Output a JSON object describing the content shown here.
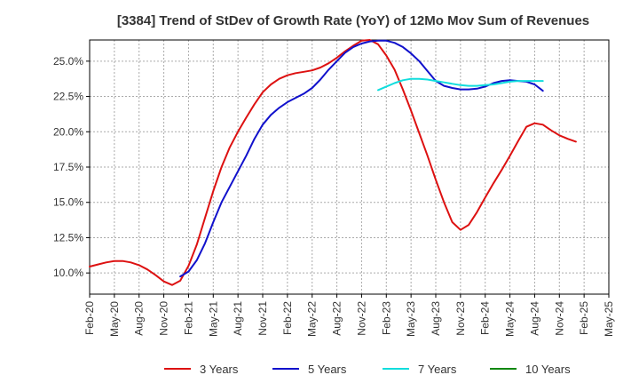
{
  "chart_data": {
    "type": "line",
    "title": "[3384]  Trend of StDev of Growth Rate (YoY) of 12Mo Mov Sum of Revenues",
    "xlabel": "",
    "ylabel": "",
    "ylim": [
      8.5,
      26.5
    ],
    "xlim": [
      0,
      63
    ],
    "grid": true,
    "legend_position": "bottom",
    "y_ticks": [
      {
        "value": 10.0,
        "label": "10.0%"
      },
      {
        "value": 12.5,
        "label": "12.5%"
      },
      {
        "value": 15.0,
        "label": "15.0%"
      },
      {
        "value": 17.5,
        "label": "17.5%"
      },
      {
        "value": 20.0,
        "label": "20.0%"
      },
      {
        "value": 22.5,
        "label": "22.5%"
      },
      {
        "value": 25.0,
        "label": "25.0%"
      }
    ],
    "x_ticks": [
      {
        "value": 0,
        "label": "Feb-20"
      },
      {
        "value": 3,
        "label": "May-20"
      },
      {
        "value": 6,
        "label": "Aug-20"
      },
      {
        "value": 9,
        "label": "Nov-20"
      },
      {
        "value": 12,
        "label": "Feb-21"
      },
      {
        "value": 15,
        "label": "May-21"
      },
      {
        "value": 18,
        "label": "Aug-21"
      },
      {
        "value": 21,
        "label": "Nov-21"
      },
      {
        "value": 24,
        "label": "Feb-22"
      },
      {
        "value": 27,
        "label": "May-22"
      },
      {
        "value": 30,
        "label": "Aug-22"
      },
      {
        "value": 33,
        "label": "Nov-22"
      },
      {
        "value": 36,
        "label": "Feb-23"
      },
      {
        "value": 39,
        "label": "May-23"
      },
      {
        "value": 42,
        "label": "Aug-23"
      },
      {
        "value": 45,
        "label": "Nov-23"
      },
      {
        "value": 48,
        "label": "Feb-24"
      },
      {
        "value": 51,
        "label": "May-24"
      },
      {
        "value": 54,
        "label": "Aug-24"
      },
      {
        "value": 57,
        "label": "Nov-24"
      },
      {
        "value": 60,
        "label": "Feb-25"
      },
      {
        "value": 63,
        "label": "May-25"
      }
    ],
    "series": [
      {
        "name": "3 Years",
        "color": "#dd1111",
        "points": [
          [
            0,
            10.45
          ],
          [
            1,
            10.6
          ],
          [
            2,
            10.75
          ],
          [
            3,
            10.85
          ],
          [
            4,
            10.85
          ],
          [
            5,
            10.75
          ],
          [
            6,
            10.55
          ],
          [
            7,
            10.25
          ],
          [
            8,
            9.85
          ],
          [
            9,
            9.4
          ],
          [
            10,
            9.15
          ],
          [
            11,
            9.45
          ],
          [
            12,
            10.5
          ],
          [
            13,
            12.0
          ],
          [
            14,
            13.9
          ],
          [
            15,
            15.8
          ],
          [
            16,
            17.5
          ],
          [
            17,
            18.9
          ],
          [
            18,
            20.0
          ],
          [
            19,
            21.0
          ],
          [
            20,
            21.95
          ],
          [
            21,
            22.8
          ],
          [
            22,
            23.35
          ],
          [
            23,
            23.75
          ],
          [
            24,
            24.0
          ],
          [
            25,
            24.15
          ],
          [
            26,
            24.25
          ],
          [
            27,
            24.35
          ],
          [
            28,
            24.55
          ],
          [
            29,
            24.85
          ],
          [
            30,
            25.25
          ],
          [
            31,
            25.7
          ],
          [
            32,
            26.1
          ],
          [
            33,
            26.45
          ],
          [
            34,
            26.5
          ],
          [
            35,
            26.2
          ],
          [
            36,
            25.4
          ],
          [
            37,
            24.4
          ],
          [
            38,
            23.0
          ],
          [
            39,
            21.5
          ],
          [
            40,
            19.9
          ],
          [
            41,
            18.3
          ],
          [
            42,
            16.6
          ],
          [
            43,
            15.0
          ],
          [
            44,
            13.6
          ],
          [
            45,
            13.05
          ],
          [
            46,
            13.4
          ],
          [
            47,
            14.3
          ],
          [
            48,
            15.35
          ],
          [
            49,
            16.35
          ],
          [
            50,
            17.3
          ],
          [
            51,
            18.3
          ],
          [
            52,
            19.35
          ],
          [
            53,
            20.35
          ],
          [
            54,
            20.6
          ],
          [
            55,
            20.5
          ],
          [
            56,
            20.1
          ],
          [
            57,
            19.75
          ],
          [
            58,
            19.5
          ],
          [
            59,
            19.3
          ]
        ]
      },
      {
        "name": "5 Years",
        "color": "#1111cc",
        "points": [
          [
            11,
            9.75
          ],
          [
            12,
            10.1
          ],
          [
            13,
            10.9
          ],
          [
            14,
            12.1
          ],
          [
            15,
            13.6
          ],
          [
            16,
            15.0
          ],
          [
            17,
            16.1
          ],
          [
            18,
            17.2
          ],
          [
            19,
            18.3
          ],
          [
            20,
            19.5
          ],
          [
            21,
            20.5
          ],
          [
            22,
            21.2
          ],
          [
            23,
            21.7
          ],
          [
            24,
            22.1
          ],
          [
            25,
            22.4
          ],
          [
            26,
            22.7
          ],
          [
            27,
            23.1
          ],
          [
            28,
            23.7
          ],
          [
            29,
            24.4
          ],
          [
            30,
            25.0
          ],
          [
            31,
            25.6
          ],
          [
            32,
            26.0
          ],
          [
            33,
            26.25
          ],
          [
            34,
            26.4
          ],
          [
            35,
            26.45
          ],
          [
            36,
            26.45
          ],
          [
            37,
            26.3
          ],
          [
            38,
            26.0
          ],
          [
            39,
            25.55
          ],
          [
            40,
            25.0
          ],
          [
            41,
            24.3
          ],
          [
            42,
            23.6
          ],
          [
            43,
            23.25
          ],
          [
            44,
            23.1
          ],
          [
            45,
            23.0
          ],
          [
            46,
            23.0
          ],
          [
            47,
            23.05
          ],
          [
            48,
            23.2
          ],
          [
            49,
            23.45
          ],
          [
            50,
            23.6
          ],
          [
            51,
            23.65
          ],
          [
            52,
            23.6
          ],
          [
            53,
            23.55
          ],
          [
            54,
            23.35
          ],
          [
            55,
            22.9
          ]
        ]
      },
      {
        "name": "7 Years",
        "color": "#11dddd",
        "points": [
          [
            35,
            22.95
          ],
          [
            36,
            23.2
          ],
          [
            37,
            23.45
          ],
          [
            38,
            23.65
          ],
          [
            39,
            23.75
          ],
          [
            40,
            23.75
          ],
          [
            41,
            23.7
          ],
          [
            42,
            23.6
          ],
          [
            43,
            23.5
          ],
          [
            44,
            23.4
          ],
          [
            45,
            23.3
          ],
          [
            46,
            23.25
          ],
          [
            47,
            23.25
          ],
          [
            48,
            23.3
          ],
          [
            49,
            23.35
          ],
          [
            50,
            23.45
          ],
          [
            51,
            23.55
          ],
          [
            52,
            23.6
          ],
          [
            53,
            23.6
          ],
          [
            54,
            23.6
          ],
          [
            55,
            23.6
          ]
        ]
      },
      {
        "name": "10 Years",
        "color": "#118811",
        "points": []
      }
    ]
  }
}
